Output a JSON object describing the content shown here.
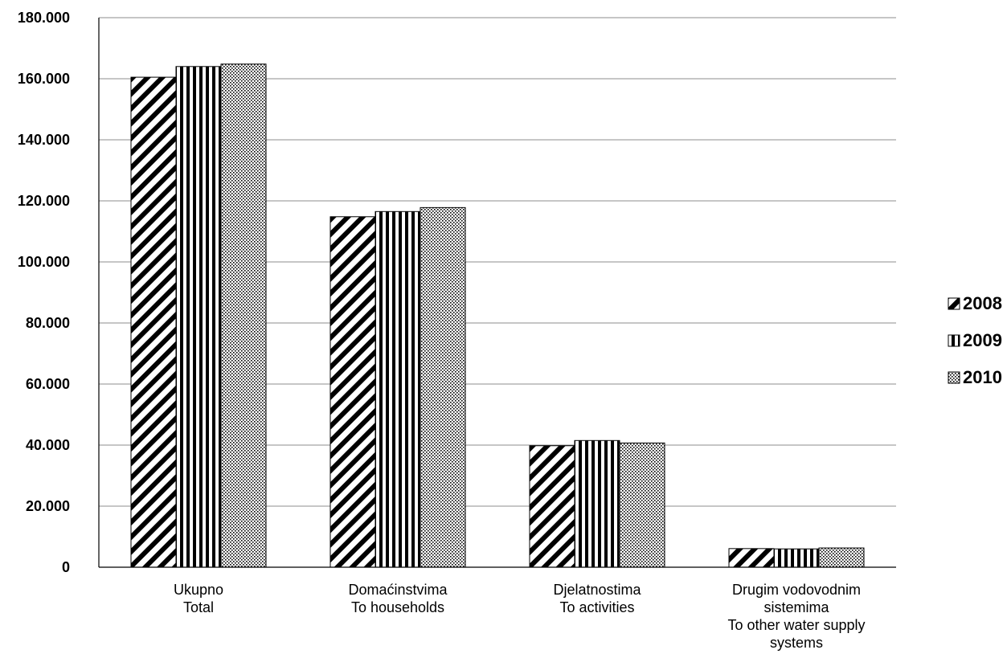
{
  "chart_data": {
    "type": "bar",
    "categories": [
      [
        "Ukupno",
        "Total"
      ],
      [
        "Domaćinstvima",
        "To households"
      ],
      [
        "Djelatnostima",
        "To activities"
      ],
      [
        "Drugim vodovodnim",
        "sistemima",
        "To other water supply",
        "systems"
      ]
    ],
    "series": [
      {
        "name": "2008",
        "values": [
          160500,
          114800,
          39800,
          6100
        ]
      },
      {
        "name": "2009",
        "values": [
          164000,
          116500,
          41500,
          6000
        ]
      },
      {
        "name": "2010",
        "values": [
          164800,
          117800,
          40700,
          6300
        ]
      }
    ],
    "yticks": [
      "0",
      "20.000",
      "40.000",
      "60.000",
      "80.000",
      "100.000",
      "120.000",
      "140.000",
      "160.000",
      "180.000"
    ],
    "ylim": [
      0,
      180000
    ],
    "grid": true,
    "legend_position": "right",
    "patterns": [
      "diagonal-stripes",
      "vertical-stripes",
      "dots"
    ]
  }
}
